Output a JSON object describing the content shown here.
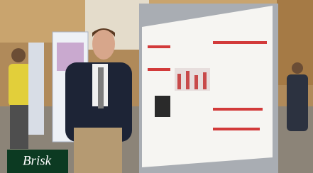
{
  "caption": "Brisk"
}
